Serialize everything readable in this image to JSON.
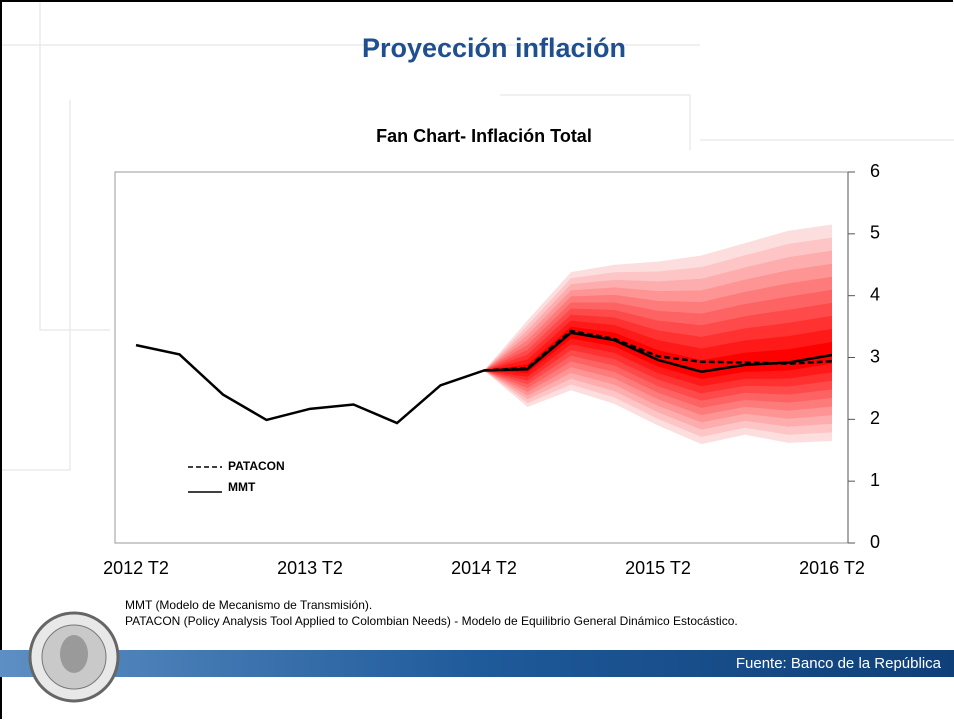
{
  "header": {
    "title": "Proyección inflación"
  },
  "chart_data": {
    "type": "fan",
    "title": "Fan Chart- Inflación Total",
    "categories": [
      "2012 T2",
      null,
      null,
      null,
      "2013 T2",
      null,
      null,
      null,
      "2014 T2",
      null,
      null,
      null,
      "2015 T2",
      null,
      null,
      null,
      "2016 T2"
    ],
    "series": [
      {
        "name": "MMT",
        "color": "#000000",
        "dash": false,
        "values": [
          3.2,
          3.05,
          2.4,
          1.99,
          2.17,
          2.24,
          1.94,
          2.55,
          2.79,
          2.81,
          3.4,
          3.28,
          2.96,
          2.77,
          2.88,
          2.92,
          3.04
        ]
      },
      {
        "name": "PATACON",
        "color": "#000000",
        "dash": true,
        "values": [
          null,
          null,
          null,
          null,
          null,
          null,
          null,
          null,
          2.79,
          2.83,
          3.43,
          3.3,
          3.02,
          2.93,
          2.92,
          2.9,
          2.94
        ]
      }
    ],
    "fan_upper": [
      null,
      null,
      null,
      null,
      null,
      null,
      null,
      null,
      2.79,
      3.6,
      4.38,
      4.5,
      4.55,
      4.65,
      4.85,
      5.05,
      5.15
    ],
    "fan_lower": [
      null,
      null,
      null,
      null,
      null,
      null,
      null,
      null,
      2.79,
      2.2,
      2.47,
      2.25,
      1.9,
      1.6,
      1.75,
      1.62,
      1.65
    ],
    "fan_color": "#ff0000",
    "ylim": [
      0,
      6
    ],
    "yticks": [
      0,
      1,
      2,
      3,
      4,
      5,
      6
    ]
  },
  "notes": [
    "MMT (Modelo de Mecanismo de Transmisión).",
    "PATACON (Policy Analysis Tool Applied to Colombian Needs) - Modelo de Equilibrio General Dinámico Estocástico."
  ],
  "footer": {
    "source": "Fuente: Banco de la República"
  }
}
